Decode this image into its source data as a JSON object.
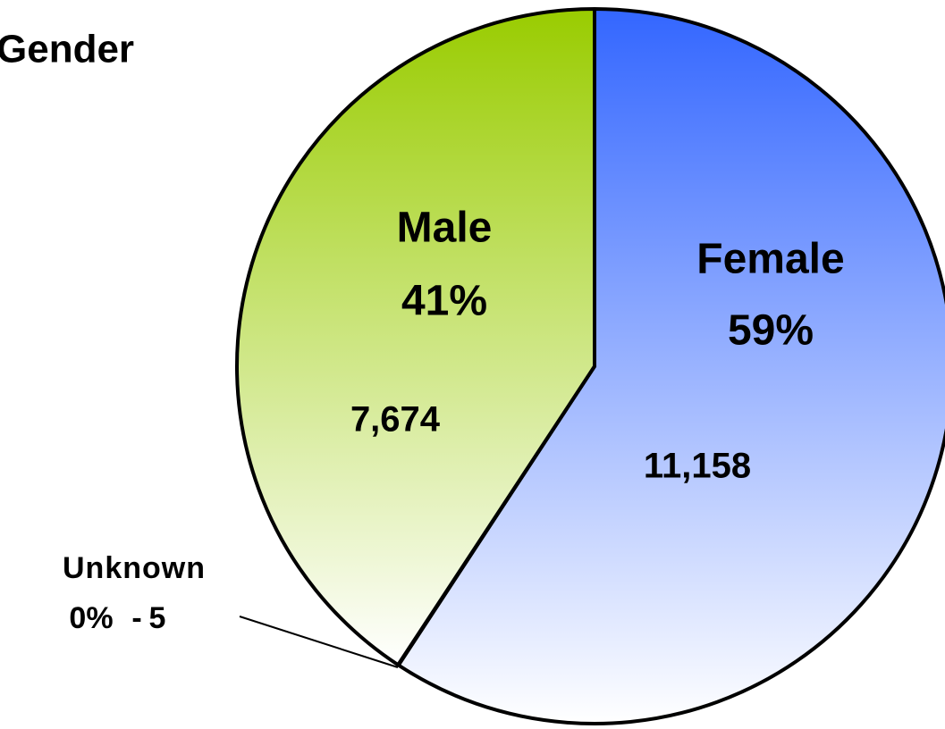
{
  "chart_data": {
    "type": "pie",
    "title": "Gender",
    "categories": [
      "Female",
      "Unknown",
      "Male"
    ],
    "values": [
      11158,
      5,
      7674
    ],
    "value_labels": [
      "11,158",
      "5",
      "7,674"
    ],
    "percents": [
      59,
      0,
      41
    ],
    "percent_labels": [
      "59%",
      "0%",
      "41%"
    ],
    "separator": "-",
    "colors": [
      "#3366ff",
      "#ffffff",
      "#99cc00"
    ]
  }
}
